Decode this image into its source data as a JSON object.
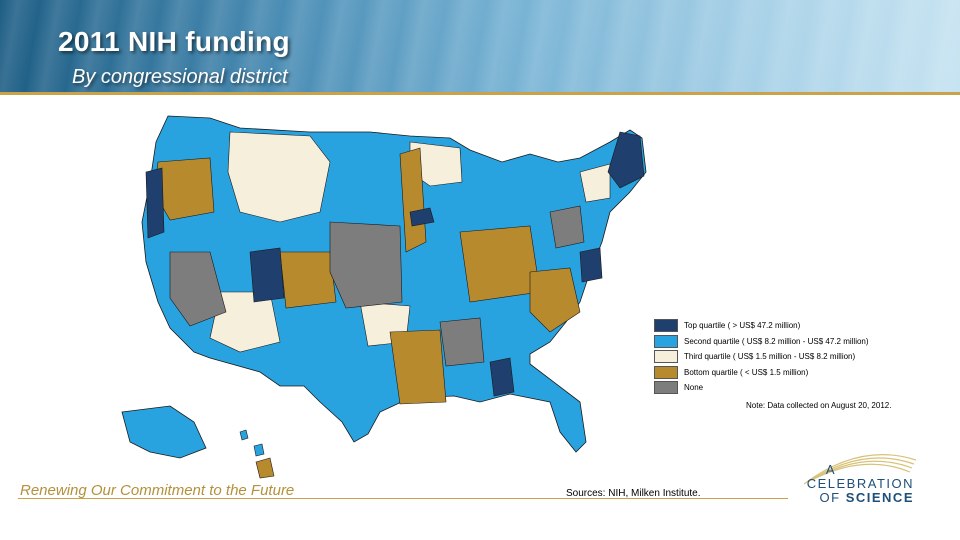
{
  "header": {
    "title": "2011 NIH funding",
    "subtitle": "By congressional district"
  },
  "legend": {
    "items": [
      {
        "label": "Top quartile ( > US$ 47.2 million)",
        "color": "#1f3f6e"
      },
      {
        "label": "Second quartile ( US$ 8.2 million - US$ 47.2 million)",
        "color": "#29a3df"
      },
      {
        "label": "Third quartile ( US$ 1.5 million - US$ 8.2 million)",
        "color": "#f6efdc"
      },
      {
        "label": "Bottom quartile ( < US$ 1.5 million)",
        "color": "#b88a2e"
      },
      {
        "label": "None",
        "color": "#7d7d7d"
      }
    ],
    "note": "Note: Data collected on August 20, 2012."
  },
  "footer": {
    "tagline": "Renewing Our Commitment to the Future",
    "sources": "Sources: NIH, Milken Institute."
  },
  "logo": {
    "line1": "A",
    "line2": "CELEBRATION",
    "line3_prefix": "OF",
    "line3_bold": "SCIENCE"
  }
}
